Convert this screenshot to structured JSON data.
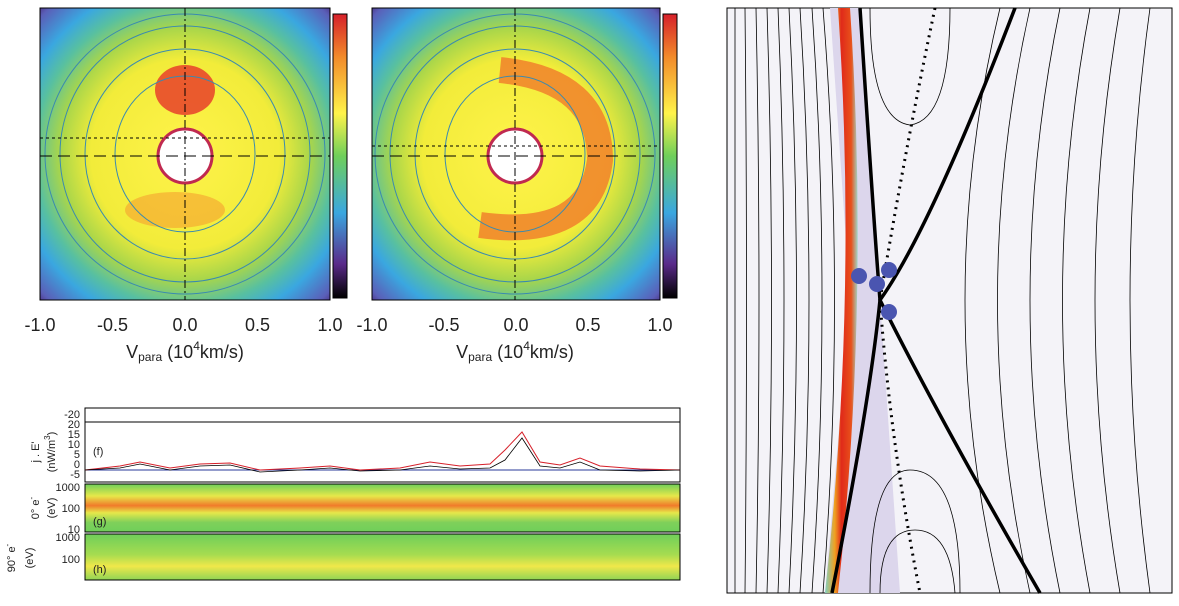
{
  "panels": [
    {
      "xticks": [
        "-1.0",
        "-0.5",
        "0.0",
        "0.5",
        "1.0"
      ],
      "xlabel": {
        "main": "V",
        "sub": "para",
        "pre": " (10",
        "sup": "4",
        "post": "km/s)"
      }
    },
    {
      "xticks": [
        "-1.0",
        "-0.5",
        "0.0",
        "0.5",
        "1.0"
      ],
      "xlabel": {
        "main": "V",
        "sub": "para",
        "pre": " (10",
        "sup": "4",
        "post": "km/s)"
      }
    }
  ],
  "timeseries": {
    "f": {
      "label": "(f)",
      "ylabel": "j . E'",
      "unit_pre": "(nW/m",
      "unit_sup": "3",
      "unit_post": ")",
      "top_tick": "-20",
      "yticks": [
        "20",
        "15",
        "10",
        "5",
        "0",
        "-5"
      ]
    },
    "g": {
      "label": "(g)",
      "ylabel_pre": "0° e",
      "ylabel_sup": "-",
      "unit": "(eV)",
      "yticks": [
        "1000",
        "100",
        "10"
      ]
    },
    "h": {
      "label": "(h)",
      "ylabel_pre": "90° e",
      "ylabel_sup": "-",
      "unit": "(eV)",
      "yticks": [
        "1000",
        "100"
      ]
    }
  }
}
